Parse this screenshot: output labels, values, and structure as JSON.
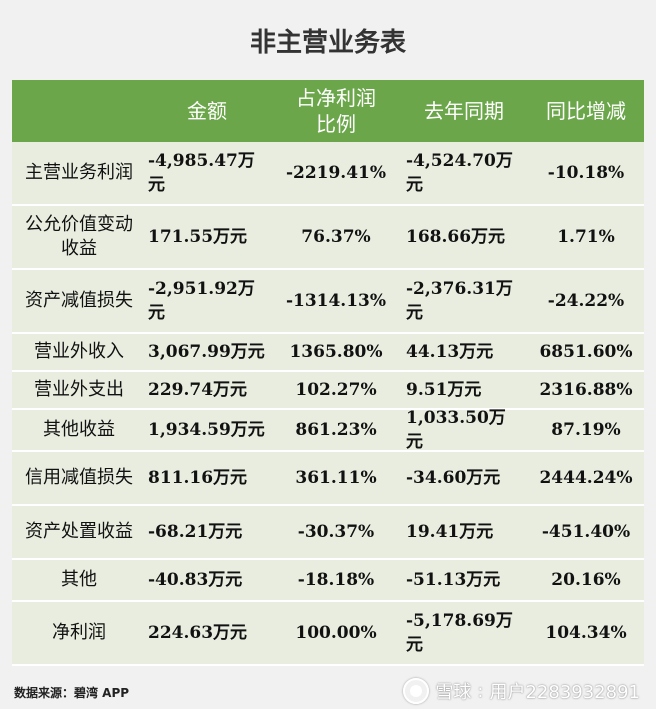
{
  "title": "非主营业务表",
  "headers": [
    "",
    "金额",
    "占净利润\n比例",
    "去年同期",
    "同比增减"
  ],
  "rows": [
    {
      "name": "主营业务利润",
      "amount": "-4,985.47万元",
      "ratio": "-2219.41%",
      "last_year": "-4,524.70万元",
      "yoy": "-10.18%"
    },
    {
      "name": "公允价值变动收益",
      "amount": "171.55万元",
      "ratio": "76.37%",
      "last_year": "168.66万元",
      "yoy": "1.71%"
    },
    {
      "name": "资产减值损失",
      "amount": "-2,951.92万元",
      "ratio": "-1314.13%",
      "last_year": "-2,376.31万元",
      "yoy": "-24.22%"
    },
    {
      "name": "营业外收入",
      "amount": "3,067.99万元",
      "ratio": "1365.80%",
      "last_year": "44.13万元",
      "yoy": "6851.60%"
    },
    {
      "name": "营业外支出",
      "amount": "229.74万元",
      "ratio": "102.27%",
      "last_year": "9.51万元",
      "yoy": "2316.88%"
    },
    {
      "name": "其他收益",
      "amount": "1,934.59万元",
      "ratio": "861.23%",
      "last_year": "1,033.50万元",
      "yoy": "87.19%"
    },
    {
      "name": "信用减值损失",
      "amount": "811.16万元",
      "ratio": "361.11%",
      "last_year": "-34.60万元",
      "yoy": "2444.24%"
    },
    {
      "name": "资产处置收益",
      "amount": "-68.21万元",
      "ratio": "-30.37%",
      "last_year": "19.41万元",
      "yoy": "-451.40%"
    },
    {
      "name": "其他",
      "amount": "-40.83万元",
      "ratio": "-18.18%",
      "last_year": "-51.13万元",
      "yoy": "20.16%"
    },
    {
      "name": "净利润",
      "amount": "224.63万元",
      "ratio": "100.00%",
      "last_year": "-5,178.69万元",
      "yoy": "104.34%"
    }
  ],
  "watermark": "碧湾App",
  "footer": "数据来源：碧湾 APP",
  "xueqiu": {
    "brand": "雪球",
    "user": "用户2283932891"
  },
  "colors": {
    "header_bg": "#6ba74a",
    "row_bg": "#e8eddf",
    "page_bg": "#f1f1f1"
  }
}
